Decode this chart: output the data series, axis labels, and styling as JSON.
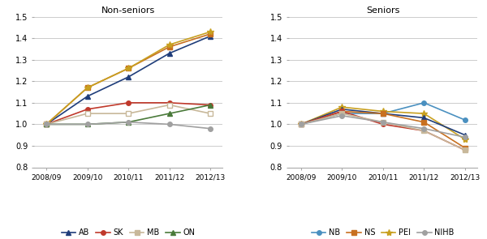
{
  "x_labels": [
    "2008/09",
    "2009/10",
    "2010/11",
    "2011/12",
    "2012/13"
  ],
  "non_seniors": {
    "AB": [
      1.0,
      1.13,
      1.22,
      1.33,
      1.41
    ],
    "SK": [
      1.0,
      1.07,
      1.1,
      1.1,
      1.09
    ],
    "MB": [
      1.0,
      1.05,
      1.05,
      1.09,
      1.05
    ],
    "ON": [
      1.0,
      1.0,
      1.01,
      1.05,
      1.09
    ],
    "NS": [
      1.0,
      1.17,
      1.26,
      1.36,
      1.42
    ],
    "PEI": [
      1.0,
      1.17,
      1.26,
      1.37,
      1.43
    ],
    "NIHB": [
      1.0,
      1.0,
      1.01,
      1.0,
      0.98
    ]
  },
  "seniors": {
    "NB": [
      1.0,
      1.05,
      1.05,
      1.1,
      1.02
    ],
    "NS": [
      1.0,
      1.06,
      1.05,
      1.01,
      0.89
    ],
    "PEI": [
      1.0,
      1.08,
      1.06,
      1.05,
      0.93
    ],
    "NIHB": [
      1.0,
      1.04,
      1.01,
      0.98,
      0.94
    ],
    "AB": [
      1.0,
      1.07,
      1.05,
      1.03,
      0.95
    ],
    "SK": [
      1.0,
      1.06,
      1.0,
      0.97,
      0.88
    ],
    "MB": [
      1.0,
      1.05,
      1.01,
      0.97,
      0.88
    ]
  },
  "colors": {
    "AB": "#1f3d7a",
    "SK": "#c0392b",
    "MB": "#c8b89a",
    "ON": "#4a7a3a",
    "NB": "#4a90c0",
    "NS": "#c87020",
    "PEI": "#c8a020",
    "NIHB": "#a0a0a0"
  },
  "markers": {
    "AB": "^",
    "SK": "o",
    "MB": "s",
    "ON": "^",
    "NB": "o",
    "NS": "s",
    "PEI": "*",
    "NIHB": "o"
  },
  "marker_sizes": {
    "AB": 4,
    "SK": 4,
    "MB": 4,
    "ON": 4,
    "NB": 4,
    "NS": 4,
    "PEI": 6,
    "NIHB": 4
  },
  "ylim": [
    0.8,
    1.5
  ],
  "yticks": [
    0.8,
    0.9,
    1.0,
    1.1,
    1.2,
    1.3,
    1.4,
    1.5
  ],
  "title_nonseniors": "Non-seniors",
  "title_seniors": "Seniors",
  "background_color": "#ffffff",
  "grid_color": "#cccccc",
  "legend_left": [
    "AB",
    "SK",
    "MB",
    "ON"
  ],
  "legend_right": [
    "NB",
    "NS",
    "PEI",
    "NIHB"
  ]
}
